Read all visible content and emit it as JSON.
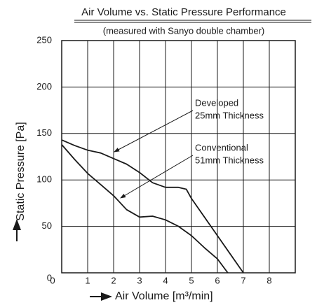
{
  "chart_data": {
    "type": "line",
    "title": "Air Volume vs. Static Pressure Performance",
    "subtitle": "(measured with Sanyo double chamber)",
    "x_label": "Air Volume [m³/min]",
    "y_label": "Static Pressure [Pa]",
    "xlim": [
      0,
      9
    ],
    "ylim": [
      0,
      250
    ],
    "xticks": [
      0,
      1,
      2,
      3,
      4,
      5,
      6,
      7,
      8
    ],
    "yticks": [
      0,
      50,
      100,
      150,
      200,
      250
    ],
    "grid": true,
    "series": [
      {
        "name": "Developed 25mm Thickness",
        "color": "#1a1a1a",
        "x": [
          0,
          0.5,
          1,
          1.5,
          2,
          2.5,
          3,
          3.5,
          4,
          4.5,
          4.8,
          5,
          5.5,
          6,
          6.5,
          7
        ],
        "values": [
          143,
          137,
          132,
          129,
          123,
          117,
          108,
          97,
          92,
          92,
          90,
          80,
          60,
          40,
          20,
          0
        ]
      },
      {
        "name": "Conventional 51mm Thickness",
        "color": "#1a1a1a",
        "x": [
          0,
          0.5,
          1,
          1.5,
          2,
          2.5,
          3,
          3.5,
          4,
          4.5,
          5,
          5.5,
          6,
          6.4
        ],
        "values": [
          138,
          122,
          107,
          95,
          83,
          68,
          60,
          61,
          57,
          50,
          40,
          27,
          15,
          0
        ]
      }
    ],
    "annotations": [
      {
        "lines": [
          "Developed",
          "25mm Thickness"
        ]
      },
      {
        "lines": [
          "Conventional",
          "51mm Thickness"
        ]
      }
    ]
  }
}
